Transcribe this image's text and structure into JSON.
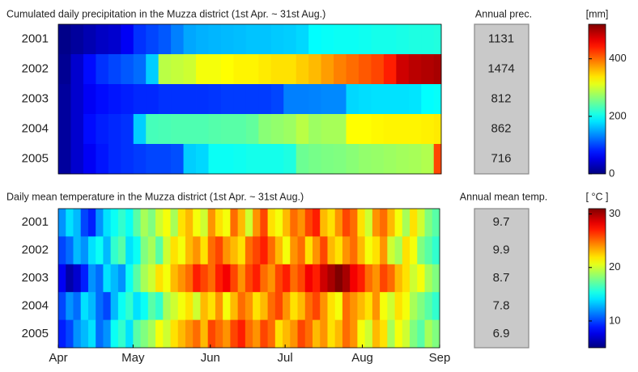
{
  "chart_data": [
    {
      "type": "heatmap",
      "title": "Cumulated daily precipitation in the Muzza district (1st Apr. ~ 31st Aug.)",
      "categories": [
        "2001",
        "2002",
        "2003",
        "2004",
        "2005"
      ],
      "xlim": [
        0,
        153
      ],
      "x": [
        0,
        5,
        10,
        15,
        20,
        25,
        30,
        35,
        40,
        45,
        50,
        55,
        60,
        65,
        70,
        75,
        80,
        85,
        90,
        95,
        100,
        105,
        110,
        115,
        120,
        125,
        130,
        135,
        140,
        145,
        150
      ],
      "values": [
        [
          5,
          15,
          25,
          35,
          40,
          60,
          90,
          100,
          110,
          130,
          150,
          155,
          158,
          160,
          162,
          165,
          165,
          168,
          170,
          175,
          195,
          198,
          200,
          200,
          202,
          205,
          205,
          207,
          210,
          210,
          212
        ],
        [
          10,
          40,
          70,
          90,
          100,
          110,
          120,
          170,
          290,
          295,
          300,
          320,
          320,
          325,
          330,
          330,
          335,
          340,
          340,
          350,
          360,
          375,
          390,
          400,
          410,
          420,
          440,
          480,
          490,
          495,
          500
        ],
        [
          15,
          40,
          60,
          70,
          75,
          80,
          85,
          85,
          90,
          90,
          90,
          90,
          92,
          95,
          95,
          95,
          95,
          100,
          130,
          130,
          132,
          135,
          135,
          175,
          178,
          180,
          180,
          180,
          182,
          195,
          198
        ],
        [
          15,
          40,
          70,
          80,
          85,
          90,
          170,
          230,
          232,
          235,
          235,
          235,
          238,
          240,
          240,
          245,
          265,
          270,
          275,
          290,
          275,
          280,
          280,
          325,
          325,
          328,
          330,
          330,
          330,
          332,
          335
        ],
        [
          15,
          40,
          60,
          75,
          85,
          90,
          95,
          100,
          100,
          105,
          170,
          175,
          200,
          200,
          202,
          205,
          205,
          205,
          210,
          250,
          255,
          258,
          260,
          265,
          270,
          272,
          275,
          278,
          280,
          285,
          420
        ]
      ],
      "colormap": "jet",
      "clim": [
        0,
        520
      ],
      "cticks": [
        0,
        200,
        400
      ],
      "clabel": "[mm]",
      "annual_label": "Annual prec.",
      "annual_values": [
        1131,
        1474,
        812,
        862,
        716
      ]
    },
    {
      "type": "heatmap",
      "title": "Daily mean temperature in the Muzza district (1st Apr. ~ 31st Aug.)",
      "categories": [
        "2001",
        "2002",
        "2003",
        "2004",
        "2005"
      ],
      "xlim": [
        0,
        153
      ],
      "xticks": [
        {
          "value": 0,
          "label": "Apr"
        },
        {
          "value": 30,
          "label": "May"
        },
        {
          "value": 61,
          "label": "Jun"
        },
        {
          "value": 91,
          "label": "Jul"
        },
        {
          "value": 122,
          "label": "Aug"
        },
        {
          "value": 153,
          "label": "Sep"
        }
      ],
      "x": [
        0,
        3,
        6,
        9,
        12,
        15,
        18,
        21,
        24,
        27,
        30,
        33,
        36,
        39,
        42,
        45,
        48,
        51,
        54,
        57,
        60,
        63,
        66,
        69,
        72,
        75,
        78,
        81,
        84,
        87,
        90,
        93,
        96,
        99,
        102,
        105,
        108,
        111,
        114,
        117,
        120,
        123,
        126,
        129,
        132,
        135,
        138,
        141,
        144,
        147,
        150
      ],
      "values": [
        [
          12,
          14,
          13,
          10,
          9,
          12,
          14,
          15,
          16,
          15,
          17,
          19,
          18,
          20,
          21,
          19,
          22,
          23,
          21,
          20,
          24,
          22,
          21,
          25,
          23,
          20,
          24,
          26,
          22,
          21,
          23,
          25,
          24,
          26,
          27,
          23,
          22,
          24,
          26,
          25,
          22,
          20,
          24,
          25,
          23,
          21,
          19,
          22,
          20,
          18,
          17
        ],
        [
          10,
          11,
          13,
          12,
          14,
          15,
          13,
          16,
          17,
          14,
          15,
          18,
          19,
          17,
          20,
          22,
          21,
          23,
          24,
          22,
          25,
          26,
          24,
          23,
          22,
          25,
          26,
          27,
          25,
          23,
          21,
          24,
          25,
          22,
          24,
          26,
          23,
          22,
          24,
          25,
          23,
          21,
          22,
          24,
          20,
          19,
          22,
          21,
          18,
          17,
          16
        ],
        [
          8,
          6,
          7,
          9,
          12,
          11,
          14,
          13,
          12,
          15,
          17,
          19,
          20,
          22,
          21,
          23,
          24,
          25,
          27,
          26,
          25,
          27,
          28,
          26,
          24,
          26,
          27,
          25,
          24,
          26,
          27,
          25,
          26,
          28,
          27,
          29,
          30,
          31,
          30,
          28,
          27,
          25,
          24,
          26,
          25,
          23,
          22,
          20,
          21,
          19,
          18
        ],
        [
          10,
          12,
          11,
          14,
          13,
          11,
          10,
          13,
          15,
          16,
          14,
          15,
          17,
          16,
          19,
          20,
          21,
          22,
          20,
          23,
          22,
          24,
          21,
          23,
          25,
          24,
          22,
          23,
          25,
          26,
          24,
          22,
          23,
          25,
          26,
          24,
          22,
          21,
          25,
          24,
          23,
          22,
          24,
          21,
          20,
          22,
          21,
          19,
          18,
          17,
          16
        ],
        [
          9,
          10,
          12,
          13,
          14,
          11,
          12,
          15,
          16,
          14,
          17,
          18,
          19,
          21,
          20,
          22,
          23,
          24,
          25,
          23,
          26,
          25,
          24,
          26,
          27,
          25,
          24,
          26,
          25,
          22,
          23,
          24,
          26,
          25,
          23,
          24,
          22,
          23,
          25,
          24,
          21,
          20,
          23,
          22,
          19,
          21,
          20,
          18,
          17,
          19,
          18
        ]
      ],
      "colormap": "jet",
      "clim": [
        5,
        31
      ],
      "cticks": [
        10,
        20,
        30
      ],
      "clabel": "[ °C ]",
      "annual_label": "Annual mean temp.",
      "annual_values": [
        9.7,
        9.9,
        8.7,
        7.8,
        6.9
      ]
    }
  ]
}
